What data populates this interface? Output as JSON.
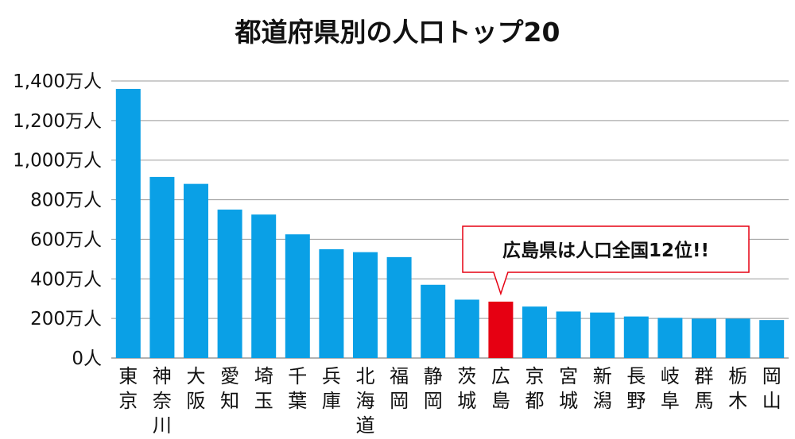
{
  "chart_data": {
    "type": "bar",
    "title": "都道府県別の人口トップ20",
    "ylim": [
      0,
      1400
    ],
    "y_unit": "万人",
    "yticks": [
      "0人",
      "200万人",
      "400万人",
      "600万人",
      "800万人",
      "1,000万人",
      "1,200万人",
      "1,400万人"
    ],
    "yticks_values": [
      0,
      200,
      400,
      600,
      800,
      1000,
      1200,
      1400
    ],
    "grid": "horizontal",
    "categories": [
      "東京",
      "神奈川",
      "大阪",
      "愛知",
      "埼玉",
      "千葉",
      "兵庫",
      "北海道",
      "福岡",
      "静岡",
      "茨城",
      "広島",
      "京都",
      "宮城",
      "新潟",
      "長野",
      "岐阜",
      "群馬",
      "栃木",
      "岡山"
    ],
    "values": [
      1360,
      915,
      880,
      750,
      725,
      625,
      550,
      535,
      510,
      370,
      295,
      285,
      260,
      235,
      230,
      210,
      203,
      199,
      199,
      192
    ],
    "highlight_index": 11,
    "colors": {
      "bar": "#0aa0e6",
      "highlight": "#e60012",
      "callout_border": "#e60012",
      "grid": "#999999"
    },
    "annotation": {
      "text": "広島県は人口全国12位!!",
      "category": "広島"
    }
  }
}
